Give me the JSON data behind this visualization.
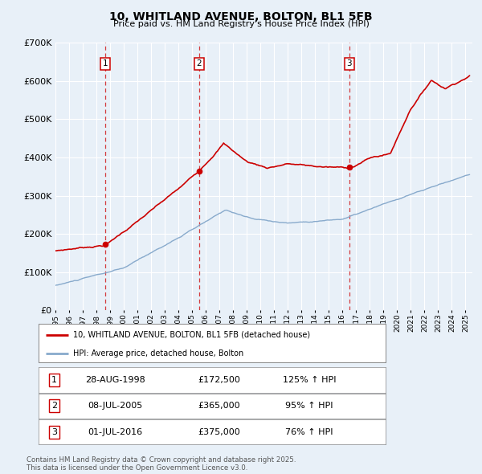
{
  "title": "10, WHITLAND AVENUE, BOLTON, BL1 5FB",
  "subtitle": "Price paid vs. HM Land Registry's House Price Index (HPI)",
  "legend_property": "10, WHITLAND AVENUE, BOLTON, BL1 5FB (detached house)",
  "legend_hpi": "HPI: Average price, detached house, Bolton",
  "property_color": "#cc0000",
  "hpi_color": "#88aacc",
  "background_color": "#e8f0f8",
  "plot_bg_color": "#e8f0f8",
  "grid_color": "#ffffff",
  "footer": "Contains HM Land Registry data © Crown copyright and database right 2025.\nThis data is licensed under the Open Government Licence v3.0.",
  "sales": [
    {
      "label": "1",
      "date_num": 1998.66,
      "price": 172500,
      "date_str": "28-AUG-1998",
      "pct": "125% ↑ HPI"
    },
    {
      "label": "2",
      "date_num": 2005.52,
      "price": 365000,
      "date_str": "08-JUL-2005",
      "pct": "95% ↑ HPI"
    },
    {
      "label": "3",
      "date_num": 2016.5,
      "price": 375000,
      "date_str": "01-JUL-2016",
      "pct": "76% ↑ HPI"
    }
  ],
  "ylim": [
    0,
    700000
  ],
  "yticks": [
    0,
    100000,
    200000,
    300000,
    400000,
    500000,
    600000,
    700000
  ],
  "ytick_labels": [
    "£0",
    "£100K",
    "£200K",
    "£300K",
    "£400K",
    "£500K",
    "£600K",
    "£700K"
  ],
  "xmin": 1995.0,
  "xmax": 2025.5,
  "xtick_years": [
    1995,
    1996,
    1997,
    1998,
    1999,
    2000,
    2001,
    2002,
    2003,
    2004,
    2005,
    2006,
    2007,
    2008,
    2009,
    2010,
    2011,
    2012,
    2013,
    2014,
    2015,
    2016,
    2017,
    2018,
    2019,
    2020,
    2021,
    2022,
    2023,
    2024,
    2025
  ]
}
